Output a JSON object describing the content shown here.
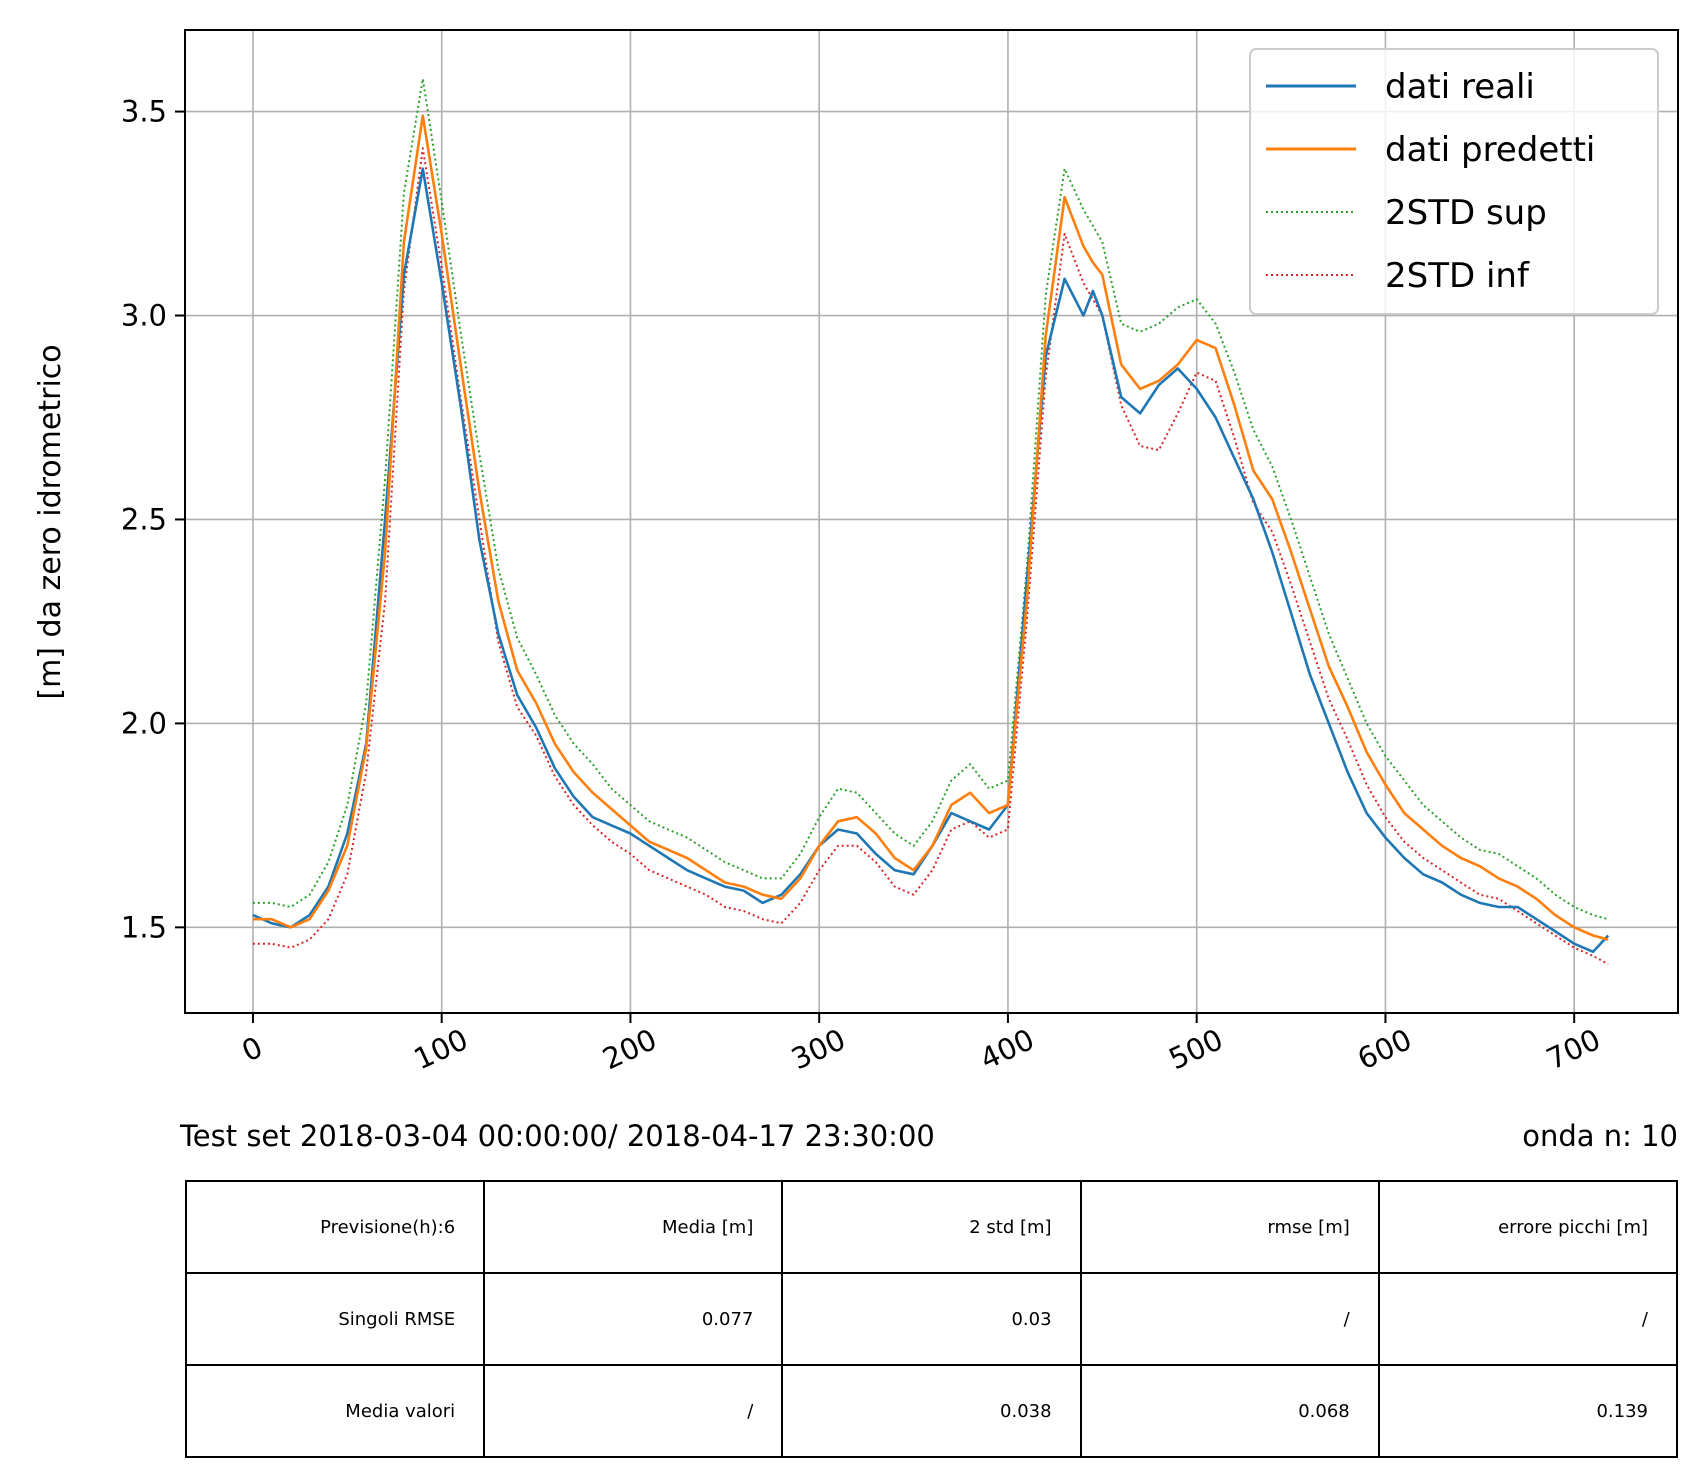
{
  "chart_data": {
    "type": "line",
    "title": "",
    "xlabel": "Test set  2018-03-04 00:00:00/ 2018-04-17 23:30:00",
    "ylabel": "[m] da zero idrometrico",
    "annotation_right": "onda n: 10",
    "xlim": [
      -36,
      755
    ],
    "ylim": [
      1.29,
      3.7
    ],
    "xticks": [
      0,
      100,
      200,
      300,
      400,
      500,
      600,
      700
    ],
    "yticks": [
      1.5,
      2.0,
      2.5,
      3.0,
      3.5
    ],
    "xtick_labels": [
      "0",
      "100",
      "200",
      "300",
      "400",
      "500",
      "600",
      "700"
    ],
    "ytick_labels": [
      "1.5",
      "2.0",
      "2.5",
      "3.0",
      "3.5"
    ],
    "grid": true,
    "legend_position": "top-right",
    "series": [
      {
        "name": "dati reali",
        "color": "#1f77b4",
        "style": "solid",
        "x": [
          0,
          10,
          20,
          30,
          40,
          50,
          60,
          70,
          80,
          90,
          100,
          110,
          120,
          130,
          140,
          150,
          160,
          170,
          180,
          190,
          200,
          210,
          220,
          230,
          240,
          250,
          260,
          270,
          280,
          290,
          300,
          310,
          320,
          330,
          340,
          350,
          360,
          370,
          380,
          390,
          400,
          410,
          420,
          430,
          440,
          445,
          450,
          460,
          470,
          480,
          490,
          500,
          510,
          520,
          530,
          540,
          550,
          560,
          570,
          580,
          590,
          600,
          610,
          620,
          630,
          640,
          650,
          660,
          670,
          680,
          690,
          700,
          710,
          718
        ],
        "y": [
          1.53,
          1.51,
          1.5,
          1.53,
          1.6,
          1.73,
          1.95,
          2.5,
          3.1,
          3.36,
          3.08,
          2.78,
          2.45,
          2.22,
          2.07,
          1.99,
          1.89,
          1.82,
          1.77,
          1.75,
          1.73,
          1.7,
          1.67,
          1.64,
          1.62,
          1.6,
          1.59,
          1.56,
          1.58,
          1.63,
          1.7,
          1.74,
          1.73,
          1.68,
          1.64,
          1.63,
          1.7,
          1.78,
          1.76,
          1.74,
          1.8,
          2.35,
          2.9,
          3.09,
          3.0,
          3.06,
          3.0,
          2.8,
          2.76,
          2.83,
          2.87,
          2.82,
          2.75,
          2.65,
          2.55,
          2.42,
          2.27,
          2.12,
          2.0,
          1.88,
          1.78,
          1.72,
          1.67,
          1.63,
          1.61,
          1.58,
          1.56,
          1.55,
          1.55,
          1.52,
          1.49,
          1.46,
          1.44,
          1.48
        ]
      },
      {
        "name": "dati predetti",
        "color": "#ff7f0e",
        "style": "solid",
        "x": [
          0,
          10,
          20,
          30,
          40,
          50,
          60,
          70,
          80,
          90,
          100,
          110,
          120,
          130,
          140,
          150,
          160,
          170,
          180,
          190,
          200,
          210,
          220,
          230,
          240,
          250,
          260,
          270,
          280,
          290,
          300,
          310,
          320,
          330,
          340,
          350,
          360,
          370,
          380,
          390,
          400,
          410,
          420,
          430,
          440,
          445,
          450,
          460,
          470,
          480,
          490,
          500,
          510,
          520,
          530,
          540,
          550,
          560,
          570,
          580,
          590,
          600,
          610,
          620,
          630,
          640,
          650,
          660,
          670,
          680,
          690,
          700,
          710,
          718
        ],
        "y": [
          1.52,
          1.52,
          1.5,
          1.52,
          1.59,
          1.7,
          1.94,
          2.42,
          3.18,
          3.49,
          3.2,
          2.88,
          2.57,
          2.3,
          2.13,
          2.05,
          1.95,
          1.88,
          1.83,
          1.79,
          1.75,
          1.71,
          1.69,
          1.67,
          1.64,
          1.61,
          1.6,
          1.58,
          1.57,
          1.62,
          1.7,
          1.76,
          1.77,
          1.73,
          1.67,
          1.64,
          1.7,
          1.8,
          1.83,
          1.78,
          1.8,
          2.3,
          2.95,
          3.29,
          3.17,
          3.13,
          3.1,
          2.88,
          2.82,
          2.84,
          2.88,
          2.94,
          2.92,
          2.78,
          2.62,
          2.55,
          2.42,
          2.28,
          2.14,
          2.04,
          1.93,
          1.85,
          1.78,
          1.74,
          1.7,
          1.67,
          1.65,
          1.62,
          1.6,
          1.57,
          1.53,
          1.5,
          1.48,
          1.47
        ]
      },
      {
        "name": "2STD sup",
        "color": "#2ca02c",
        "style": "dotted",
        "x": [
          0,
          10,
          20,
          30,
          40,
          50,
          60,
          70,
          80,
          90,
          100,
          110,
          120,
          130,
          140,
          150,
          160,
          170,
          180,
          190,
          200,
          210,
          220,
          230,
          240,
          250,
          260,
          270,
          280,
          290,
          300,
          310,
          320,
          330,
          340,
          350,
          360,
          370,
          380,
          390,
          400,
          410,
          420,
          430,
          440,
          445,
          450,
          460,
          470,
          480,
          490,
          500,
          510,
          520,
          530,
          540,
          550,
          560,
          570,
          580,
          590,
          600,
          610,
          620,
          630,
          640,
          650,
          660,
          670,
          680,
          690,
          700,
          710,
          718
        ],
        "y": [
          1.56,
          1.56,
          1.55,
          1.58,
          1.66,
          1.8,
          2.05,
          2.6,
          3.3,
          3.58,
          3.28,
          2.96,
          2.66,
          2.38,
          2.21,
          2.12,
          2.02,
          1.95,
          1.9,
          1.84,
          1.8,
          1.76,
          1.74,
          1.72,
          1.69,
          1.66,
          1.64,
          1.62,
          1.62,
          1.68,
          1.77,
          1.84,
          1.83,
          1.78,
          1.73,
          1.7,
          1.76,
          1.86,
          1.9,
          1.84,
          1.86,
          2.38,
          3.05,
          3.36,
          3.26,
          3.22,
          3.18,
          2.98,
          2.96,
          2.98,
          3.02,
          3.04,
          2.98,
          2.86,
          2.72,
          2.63,
          2.5,
          2.36,
          2.22,
          2.11,
          2.0,
          1.92,
          1.86,
          1.8,
          1.76,
          1.72,
          1.69,
          1.68,
          1.65,
          1.62,
          1.58,
          1.55,
          1.53,
          1.52
        ]
      },
      {
        "name": "2STD inf",
        "color": "#d62728",
        "style": "dotted",
        "x": [
          0,
          10,
          20,
          30,
          40,
          50,
          60,
          70,
          80,
          90,
          100,
          110,
          120,
          130,
          140,
          150,
          160,
          170,
          180,
          190,
          200,
          210,
          220,
          230,
          240,
          250,
          260,
          270,
          280,
          290,
          300,
          310,
          320,
          330,
          340,
          350,
          360,
          370,
          380,
          390,
          400,
          410,
          420,
          430,
          440,
          445,
          450,
          460,
          470,
          480,
          490,
          500,
          510,
          520,
          530,
          540,
          550,
          560,
          570,
          580,
          590,
          600,
          610,
          620,
          630,
          640,
          650,
          660,
          670,
          680,
          690,
          700,
          710,
          718
        ],
        "y": [
          1.46,
          1.46,
          1.45,
          1.47,
          1.52,
          1.63,
          1.88,
          2.3,
          3.06,
          3.41,
          3.12,
          2.8,
          2.5,
          2.2,
          2.04,
          1.97,
          1.87,
          1.8,
          1.75,
          1.71,
          1.68,
          1.64,
          1.62,
          1.6,
          1.58,
          1.55,
          1.54,
          1.52,
          1.51,
          1.56,
          1.64,
          1.7,
          1.7,
          1.66,
          1.6,
          1.58,
          1.64,
          1.74,
          1.76,
          1.72,
          1.74,
          2.25,
          2.85,
          3.2,
          3.08,
          3.04,
          3.0,
          2.78,
          2.68,
          2.67,
          2.76,
          2.86,
          2.84,
          2.7,
          2.54,
          2.47,
          2.34,
          2.2,
          2.06,
          1.96,
          1.85,
          1.77,
          1.71,
          1.67,
          1.64,
          1.61,
          1.58,
          1.57,
          1.54,
          1.51,
          1.48,
          1.45,
          1.43,
          1.41
        ]
      }
    ]
  },
  "stats_table": {
    "header": [
      "Previsione(h):6",
      "Media [m]",
      "2 std [m]",
      "rmse [m]",
      "errore picchi [m]"
    ],
    "rows": [
      [
        "Singoli RMSE",
        "0.077",
        "0.03",
        "/",
        "/"
      ],
      [
        "Media valori",
        "/",
        "0.038",
        "0.068",
        "0.139"
      ]
    ]
  }
}
